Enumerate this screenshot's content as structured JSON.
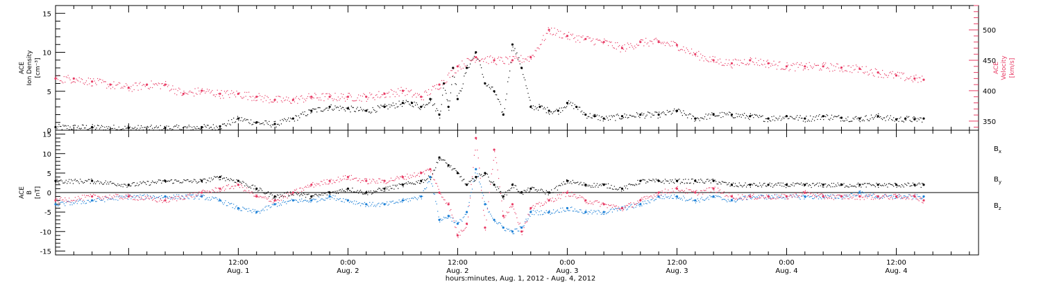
{
  "colors": {
    "black": "#000000",
    "pink": "#e83b64",
    "blue": "#1a7fd6",
    "grid": "#000000"
  },
  "x_axis": {
    "title": "hours:minutes, Aug.  1, 2012 - Aug.  4, 2012",
    "range_hours": [
      -8,
      93
    ],
    "ticks": [
      {
        "hour": 12,
        "time": "12:00",
        "date": "Aug. 1"
      },
      {
        "hour": 24,
        "time": "0:00",
        "date": "Aug. 2"
      },
      {
        "hour": 36,
        "time": "12:00",
        "date": "Aug. 2"
      },
      {
        "hour": 48,
        "time": "0:00",
        "date": "Aug. 3"
      },
      {
        "hour": 60,
        "time": "12:00",
        "date": "Aug. 3"
      },
      {
        "hour": 72,
        "time": "0:00",
        "date": "Aug. 4"
      },
      {
        "hour": 84,
        "time": "12:00",
        "date": "Aug. 4"
      }
    ]
  },
  "chart_data": [
    {
      "type": "scatter",
      "panel": "top",
      "left_axis": {
        "label_lines": [
          "ACE",
          "Ion Density",
          "[cm⁻³]"
        ],
        "ylim": [
          0,
          16
        ],
        "ticks": [
          0,
          5,
          10,
          15
        ]
      },
      "right_axis": {
        "label_lines": [
          "ACE",
          "Velocity",
          "[km/s]"
        ],
        "ylim": [
          335,
          540
        ],
        "ticks": [
          350,
          400,
          450,
          500
        ]
      },
      "series": [
        {
          "axis": "left",
          "color": "#000000",
          "x": [
            -8,
            -4,
            0,
            4,
            8,
            10,
            12,
            14,
            16,
            18,
            20,
            22,
            24,
            26,
            28,
            30,
            31,
            32,
            33,
            34,
            34.5,
            35,
            35.5,
            36,
            37,
            38,
            39,
            40,
            41,
            42,
            43,
            44,
            45,
            46,
            47,
            48,
            49,
            50,
            51,
            52,
            54,
            56,
            58,
            60,
            62,
            64,
            66,
            68,
            70,
            72,
            74,
            76,
            78,
            80,
            82,
            84,
            85,
            86,
            87
          ],
          "values": [
            0.4,
            0.4,
            0.3,
            0.3,
            0.4,
            0.5,
            1.5,
            1.0,
            0.8,
            1.5,
            2.5,
            3.0,
            2.8,
            2.5,
            3.0,
            3.5,
            3.5,
            3.0,
            4.0,
            2.0,
            6.0,
            3.0,
            8.0,
            4.0,
            8.0,
            10.0,
            6.0,
            5.0,
            2.0,
            11.0,
            8.0,
            3.0,
            3.0,
            2.5,
            2.5,
            3.5,
            3.0,
            2.0,
            1.8,
            1.5,
            1.8,
            2.0,
            2.0,
            2.5,
            1.5,
            2.0,
            2.0,
            1.8,
            1.5,
            1.8,
            1.5,
            1.8,
            1.6,
            1.5,
            1.8,
            1.4,
            1.5,
            1.4,
            1.5
          ]
        },
        {
          "axis": "right",
          "color": "#e83b64",
          "x": [
            -8,
            -6,
            -4,
            -2,
            0,
            2,
            4,
            6,
            8,
            10,
            12,
            14,
            16,
            18,
            20,
            22,
            24,
            26,
            28,
            30,
            32,
            34,
            36,
            38,
            40,
            42,
            44,
            46,
            48,
            50,
            52,
            54,
            56,
            58,
            60,
            62,
            64,
            66,
            68,
            70,
            72,
            74,
            76,
            78,
            80,
            82,
            84,
            86,
            87
          ],
          "values": [
            420,
            420,
            415,
            410,
            405,
            410,
            410,
            395,
            400,
            395,
            395,
            390,
            385,
            385,
            390,
            390,
            390,
            390,
            395,
            400,
            390,
            410,
            440,
            455,
            450,
            450,
            455,
            500,
            490,
            485,
            480,
            470,
            480,
            480,
            475,
            460,
            450,
            445,
            450,
            445,
            440,
            440,
            440,
            438,
            436,
            430,
            425,
            420,
            418
          ]
        }
      ]
    },
    {
      "type": "scatter",
      "panel": "bottom",
      "left_axis": {
        "label_lines": [
          "ACE",
          "B",
          "[nT]"
        ],
        "ylim": [
          -16,
          16
        ],
        "ticks": [
          -15,
          -10,
          -5,
          0,
          5,
          10,
          15
        ]
      },
      "legend": [
        {
          "name": "B",
          "sub": "x",
          "color": "#000000"
        },
        {
          "name": "B",
          "sub": "y",
          "color": "#1a7fd6"
        },
        {
          "name": "B",
          "sub": "z",
          "color": "#e83b64"
        }
      ],
      "series": [
        {
          "name": "Bx",
          "color": "#000000",
          "x": [
            -8,
            -4,
            0,
            4,
            8,
            10,
            12,
            14,
            16,
            18,
            20,
            22,
            24,
            26,
            28,
            30,
            32,
            33,
            34,
            35,
            36,
            37,
            38,
            39,
            40,
            41,
            42,
            43,
            44,
            46,
            48,
            50,
            52,
            54,
            56,
            58,
            60,
            62,
            64,
            66,
            68,
            70,
            72,
            74,
            76,
            78,
            80,
            82,
            84,
            86,
            87
          ],
          "values": [
            3,
            3,
            2,
            3,
            3,
            4,
            3,
            1,
            -1,
            0,
            -1,
            0,
            1,
            0,
            1,
            2,
            3,
            4,
            9,
            7,
            5,
            2,
            4,
            5,
            2,
            -1,
            2,
            0,
            1,
            0,
            3,
            2,
            2,
            1,
            3,
            3,
            3,
            3,
            3,
            2,
            2,
            2,
            2,
            2,
            2,
            2,
            2,
            2,
            2,
            2,
            2
          ]
        },
        {
          "name": "By",
          "color": "#1a7fd6",
          "x": [
            -8,
            -4,
            0,
            4,
            8,
            10,
            12,
            14,
            16,
            18,
            20,
            22,
            24,
            26,
            28,
            30,
            32,
            33,
            34,
            35,
            36,
            37,
            38,
            39,
            40,
            41,
            42,
            43,
            44,
            46,
            48,
            50,
            52,
            54,
            56,
            58,
            60,
            62,
            64,
            66,
            68,
            70,
            72,
            74,
            76,
            78,
            80,
            82,
            84,
            86,
            87
          ],
          "values": [
            -3,
            -2,
            -1,
            -1,
            -1,
            -2,
            -4,
            -5,
            -3,
            -2,
            -2,
            -1,
            -2,
            -3,
            -3,
            -2,
            -1,
            4,
            -7,
            -6,
            -8,
            -5,
            6,
            -3,
            -7,
            -9,
            -10,
            -9,
            -5,
            -5,
            -4,
            -5,
            -5,
            -4,
            -3,
            -1,
            -1,
            -2,
            -1,
            -2,
            -1,
            -1,
            -1,
            -1,
            -1,
            -1,
            0,
            -1,
            -1,
            -1,
            -1
          ]
        },
        {
          "name": "Bz",
          "color": "#e83b64",
          "x": [
            -8,
            -4,
            0,
            4,
            8,
            10,
            12,
            14,
            16,
            18,
            20,
            22,
            24,
            26,
            28,
            30,
            32,
            33,
            34,
            35,
            36,
            37,
            38,
            39,
            40,
            41,
            42,
            43,
            44,
            46,
            48,
            50,
            52,
            54,
            56,
            58,
            60,
            62,
            64,
            66,
            68,
            70,
            72,
            74,
            76,
            78,
            80,
            82,
            84,
            86,
            87
          ],
          "values": [
            -2,
            -1,
            -1,
            -2,
            0,
            1,
            2,
            -1,
            -2,
            0,
            2,
            3,
            4,
            3,
            3,
            4,
            5,
            6,
            0,
            -3,
            -11,
            -8,
            14,
            -9,
            11,
            -6,
            -3,
            -10,
            -4,
            -2,
            0,
            -2,
            -3,
            -4,
            -2,
            0,
            1,
            0,
            1,
            -1,
            -1,
            -1,
            -1,
            0,
            -1,
            -1,
            -1,
            -1,
            -1,
            -1,
            -2
          ]
        }
      ]
    }
  ]
}
